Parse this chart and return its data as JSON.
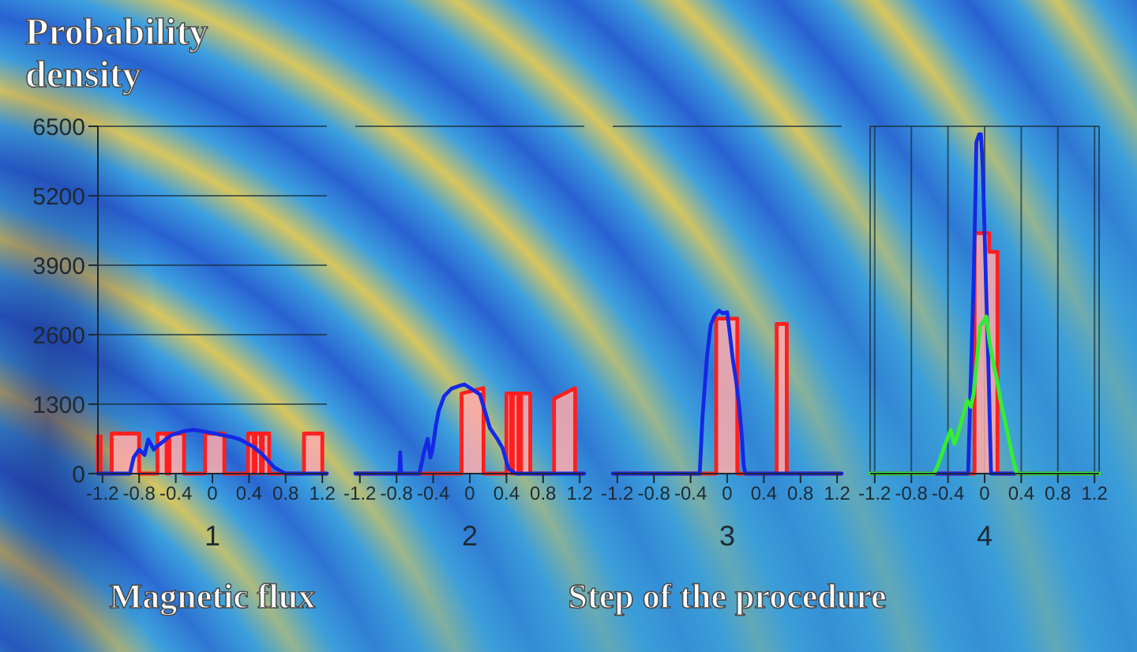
{
  "chart_data": [
    {
      "type": "line",
      "xlabel": "Magnetic flux",
      "ylabel": "Probability density",
      "xlim": [
        -1.25,
        1.25
      ],
      "ylim": [
        0,
        6500
      ],
      "xticks": [
        -1.2,
        -0.8,
        -0.4,
        0,
        0.4,
        0.8,
        1.2
      ],
      "yticks": [
        0,
        1300,
        2600,
        3900,
        5200,
        6500
      ],
      "grid": "y",
      "annotations": [
        "1"
      ],
      "series": [
        {
          "type": "area",
          "color": "#ff1f1f",
          "x": [
            -1.25,
            -1.25,
            -1.22,
            -1.22,
            -1.1,
            -1.1,
            -0.8,
            -0.8,
            -0.6,
            -0.6,
            -0.5,
            -0.5,
            -0.47,
            -0.47,
            -0.31,
            -0.31,
            -0.08,
            -0.08,
            0.13,
            0.13,
            0.39,
            0.39,
            0.45,
            0.45,
            0.47,
            0.47,
            0.53,
            0.53,
            0.55,
            0.55,
            0.62,
            0.62,
            1.0,
            1.0,
            1.2,
            1.2,
            1.25
          ],
          "values": [
            0,
            700,
            700,
            0,
            0,
            750,
            750,
            0,
            0,
            750,
            750,
            0,
            0,
            750,
            750,
            0,
            0,
            750,
            750,
            0,
            0,
            750,
            750,
            0,
            0,
            750,
            750,
            0,
            0,
            750,
            750,
            0,
            0,
            750,
            750,
            0,
            0
          ]
        },
        {
          "type": "line",
          "color": "#1428e6",
          "x": [
            -1.25,
            -0.9,
            -0.86,
            -0.8,
            -0.74,
            -0.7,
            -0.64,
            -0.6,
            -0.5,
            -0.45,
            -0.3,
            -0.2,
            0,
            0.2,
            0.3,
            0.45,
            0.55,
            0.68,
            0.8,
            1.25
          ],
          "values": [
            0,
            0,
            300,
            450,
            350,
            640,
            450,
            520,
            650,
            720,
            800,
            820,
            760,
            690,
            640,
            500,
            350,
            110,
            0,
            0
          ]
        }
      ]
    },
    {
      "type": "line",
      "xlim": [
        -1.25,
        1.25
      ],
      "ylim": [
        0,
        6500
      ],
      "xticks": [
        -1.2,
        -0.8,
        -0.4,
        0,
        0.4,
        0.8,
        1.2
      ],
      "yticks": [
        0,
        1300,
        2600,
        3900,
        5200,
        6500
      ],
      "tick_labels": "x",
      "grid": "y",
      "annotations": [
        "2"
      ],
      "series": [
        {
          "type": "area",
          "color": "#ff1f1f",
          "x": [
            -1.25,
            -0.09,
            -0.09,
            0.15,
            0.15,
            0.4,
            0.4,
            0.45,
            0.45,
            0.47,
            0.47,
            0.53,
            0.53,
            0.56,
            0.56,
            0.66,
            0.66,
            0.92,
            0.92,
            1.15,
            1.15,
            1.25
          ],
          "values": [
            0,
            0,
            1500,
            1600,
            0,
            0,
            1500,
            1500,
            0,
            0,
            1500,
            1500,
            0,
            0,
            1500,
            1500,
            0,
            0,
            1400,
            1600,
            0,
            0
          ]
        },
        {
          "type": "line",
          "color": "#1428e6",
          "x": [
            -1.25,
            -0.77,
            -0.76,
            -0.75,
            -0.55,
            -0.5,
            -0.46,
            -0.43,
            -0.41,
            -0.37,
            -0.34,
            -0.28,
            -0.2,
            -0.1,
            -0.06,
            0.05,
            0.11,
            0.16,
            0.22,
            0.3,
            0.36,
            0.42,
            0.5,
            1.25
          ],
          "values": [
            0,
            0,
            400,
            0,
            0,
            400,
            650,
            300,
            420,
            900,
            1170,
            1450,
            1590,
            1650,
            1670,
            1550,
            1480,
            1200,
            850,
            650,
            470,
            100,
            0,
            0
          ]
        }
      ]
    },
    {
      "type": "line",
      "xlim": [
        -1.25,
        1.25
      ],
      "ylim": [
        0,
        6500
      ],
      "xticks": [
        -1.2,
        -0.8,
        -0.4,
        0,
        0.4,
        0.8,
        1.2
      ],
      "yticks": [
        0,
        1300,
        2600,
        3900,
        5200,
        6500
      ],
      "tick_labels": "x",
      "grid": "y",
      "annotations": [
        "3"
      ],
      "series": [
        {
          "type": "area",
          "color": "#ff1f1f",
          "x": [
            -1.25,
            -0.12,
            -0.12,
            0.11,
            0.11,
            0.54,
            0.54,
            0.65,
            0.65,
            1.25
          ],
          "values": [
            0,
            0,
            2900,
            2900,
            0,
            0,
            2800,
            2800,
            0,
            0
          ]
        },
        {
          "type": "line",
          "color": "#1428e6",
          "x": [
            -1.25,
            -0.3,
            -0.27,
            -0.22,
            -0.18,
            -0.14,
            -0.09,
            -0.05,
            0,
            0.03,
            0.06,
            0.1,
            0.13,
            0.16,
            0.18,
            0.2,
            1.25
          ],
          "values": [
            0,
            0,
            1050,
            2200,
            2780,
            2950,
            3050,
            3000,
            3020,
            2600,
            2150,
            1700,
            1270,
            700,
            150,
            0,
            0
          ]
        }
      ]
    },
    {
      "type": "line",
      "xlim": [
        -1.25,
        1.25
      ],
      "ylim": [
        0,
        6500
      ],
      "xticks": [
        -1.2,
        -0.8,
        -0.4,
        0,
        0.4,
        0.8,
        1.2
      ],
      "yticks": [
        0,
        1300,
        2600,
        3900,
        5200,
        6500
      ],
      "tick_labels": "x",
      "grid": true,
      "annotations": [
        "4",
        "Step of the procedure"
      ],
      "series": [
        {
          "type": "area",
          "color": "#ff1f1f",
          "x": [
            -1.25,
            -0.11,
            -0.11,
            0.05,
            0.05,
            0.14,
            0.14,
            1.25
          ],
          "values": [
            0,
            0,
            4500,
            4500,
            4150,
            4150,
            0,
            0
          ]
        },
        {
          "type": "line",
          "color": "#1428e6",
          "x": [
            -1.25,
            -0.18,
            -0.15,
            -0.12,
            -0.1,
            -0.09,
            -0.06,
            -0.04,
            -0.02,
            0,
            0.02,
            0.04,
            0.05,
            0.07,
            1.25
          ],
          "values": [
            0,
            0,
            1800,
            3600,
            5200,
            6200,
            6350,
            6350,
            5700,
            4500,
            3250,
            2100,
            1430,
            0,
            0
          ]
        },
        {
          "type": "line",
          "color": "#33ee33",
          "x": [
            -1.25,
            -0.55,
            -0.5,
            -0.44,
            -0.37,
            -0.33,
            -0.3,
            -0.25,
            -0.19,
            -0.15,
            -0.12,
            -0.08,
            -0.05,
            0.02,
            0.05,
            0.09,
            0.13,
            0.17,
            0.22,
            0.26,
            0.3,
            0.35,
            1.25
          ],
          "values": [
            0,
            0,
            200,
            500,
            820,
            550,
            690,
            1000,
            1370,
            1250,
            1500,
            2200,
            2750,
            2940,
            2500,
            2100,
            1800,
            1400,
            1000,
            680,
            350,
            0,
            0
          ]
        }
      ]
    }
  ]
}
